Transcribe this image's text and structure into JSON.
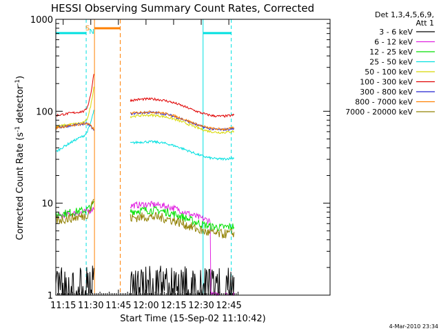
{
  "chart_data": {
    "type": "line",
    "title": "HESSI Observing Summary Count Rates, Corrected",
    "xlabel": "Start Time (15-Sep-02 11:10:42)",
    "ylabel_main": "Corrected Count Rate (s",
    "ylabel_sup1": "-1",
    "ylabel_mid": " detector",
    "ylabel_sup2": "-1",
    "ylabel_end": ")",
    "yscale": "log",
    "ylim": [
      1,
      1000
    ],
    "xlim_minutes": [
      11.0,
      160.0
    ],
    "x_ticks": [
      {
        "label": "11:15",
        "m": 15
      },
      {
        "label": "11:30",
        "m": 30
      },
      {
        "label": "11:45",
        "m": 45
      },
      {
        "label": "12:00",
        "m": 60
      },
      {
        "label": "12:15",
        "m": 75
      },
      {
        "label": "12:30",
        "m": 90
      },
      {
        "label": "12:45",
        "m": 105
      }
    ],
    "y_ticks": [
      {
        "label": "1",
        "v": 1
      },
      {
        "label": "10",
        "v": 10
      },
      {
        "label": "100",
        "v": 100
      },
      {
        "label": "1000",
        "v": 1000
      }
    ],
    "legend_header": [
      "Det 1,3,4,5,6,9,",
      "Att 1"
    ],
    "legend_placement": "right",
    "series": [
      {
        "name": "3 - 6 keV",
        "color": "#000000"
      },
      {
        "name": "6 - 12 keV",
        "color": "#e020e0"
      },
      {
        "name": "12 - 25 keV",
        "color": "#00e000"
      },
      {
        "name": "25 - 50 keV",
        "color": "#00e0e0"
      },
      {
        "name": "50 - 100 keV",
        "color": "#d8d800"
      },
      {
        "name": "100 - 300 keV",
        "color": "#e00000"
      },
      {
        "name": "300 - 800 keV",
        "color": "#2020d0"
      },
      {
        "name": "800 - 7000 keV",
        "color": "#ff8000"
      },
      {
        "name": "7000 - 20000 keV",
        "color": "#908000"
      }
    ],
    "annotations": [
      {
        "label": "N",
        "color": "#00e0e0"
      },
      {
        "label": "S",
        "color": "#ff8000"
      }
    ],
    "flags": {
      "night_color": "#00e0e0",
      "saa_color": "#ff8000",
      "night_intervals_minutes": [
        [
          11.0,
          27.5
        ],
        [
          91.0,
          106.3
        ]
      ],
      "saa_interval_minutes": [
        32.0,
        46.0
      ]
    },
    "footer_date": "4-Mar-2010 23:34"
  }
}
